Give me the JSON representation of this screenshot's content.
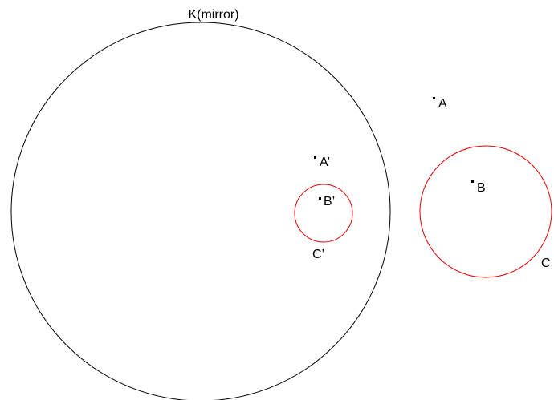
{
  "nodes": [
    {
      "label": "K(mirror)"
    },
    {
      "label": "A"
    },
    {
      "label": "A’"
    },
    {
      "label": "B"
    },
    {
      "label": "B’"
    },
    {
      "label": "C"
    },
    {
      "label": "C’"
    }
  ]
}
